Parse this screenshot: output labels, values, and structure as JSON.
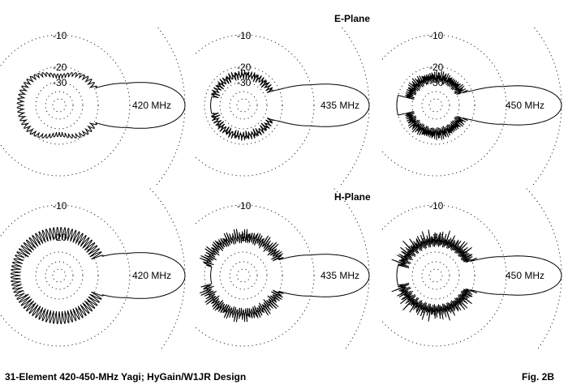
{
  "figure": {
    "caption": "31-Element 420-450-MHz Yagi; HyGain/W1JR Design",
    "fig_label": "Fig. 2B"
  },
  "rows": [
    {
      "title": "E-Plane",
      "plots": [
        {
          "freq_label": "420 MHz",
          "ring_labels": [
            "-10",
            "-20",
            "-30"
          ]
        },
        {
          "freq_label": "435 MHz",
          "ring_labels": [
            "-10",
            "-20",
            "-30"
          ]
        },
        {
          "freq_label": "450 MHz",
          "ring_labels": [
            "-10",
            "-20",
            "-30"
          ]
        }
      ]
    },
    {
      "title": "H-Plane",
      "plots": [
        {
          "freq_label": "420 MHz",
          "ring_labels": [
            "-10",
            "-20"
          ]
        },
        {
          "freq_label": "435 MHz",
          "ring_labels": [
            "-10",
            "-20"
          ]
        },
        {
          "freq_label": "450 MHz",
          "ring_labels": [
            "-10",
            "-20"
          ]
        }
      ]
    }
  ],
  "colors": {
    "line": "#000000",
    "grid": "#000000",
    "background": "#ffffff"
  }
}
